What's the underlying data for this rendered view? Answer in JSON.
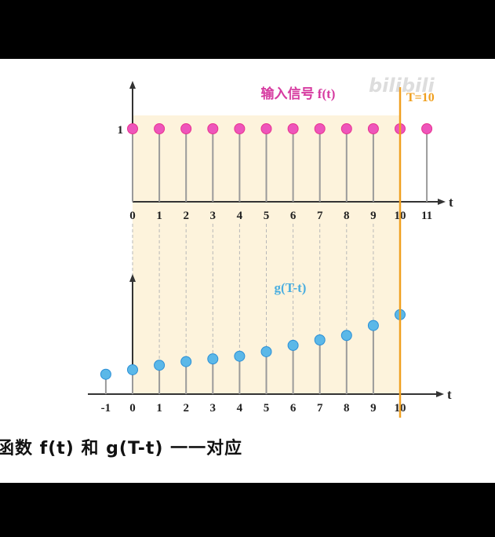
{
  "chart_data": [
    {
      "type": "stem",
      "series": [
        {
          "name": "f(t)",
          "x": [
            0,
            1,
            2,
            3,
            4,
            5,
            6,
            7,
            8,
            9,
            10,
            11
          ],
          "values": [
            1,
            1,
            1,
            1,
            1,
            1,
            1,
            1,
            1,
            1,
            1,
            1
          ]
        }
      ],
      "title": "输入信号 f(t)",
      "xlabel": "t",
      "ylabel": "",
      "xticks": [
        "0",
        "1",
        "2",
        "3",
        "4",
        "5",
        "6",
        "7",
        "8",
        "9",
        "10",
        "11"
      ],
      "yticks": [
        "1"
      ],
      "ylim": [
        0,
        1.35
      ],
      "marker_color": "#ee55bb",
      "marker_color_edge": "#e8338f"
    },
    {
      "type": "stem",
      "series": [
        {
          "name": "g(T-t)",
          "x": [
            -1,
            0,
            1,
            2,
            3,
            4,
            5,
            6,
            7,
            8,
            9,
            10
          ],
          "values": [
            0.22,
            0.27,
            0.32,
            0.36,
            0.39,
            0.42,
            0.47,
            0.54,
            0.6,
            0.65,
            0.76,
            0.88
          ]
        }
      ],
      "title": "g(T-t)",
      "xlabel": "t",
      "ylabel": "",
      "xticks": [
        "-1",
        "0",
        "1",
        "2",
        "3",
        "4",
        "5",
        "6",
        "7",
        "8",
        "9",
        "10"
      ],
      "ylim": [
        0,
        1.35
      ],
      "marker_color": "#5bb8e8",
      "marker_color_edge": "#2b8fd6"
    }
  ],
  "annotation": {
    "marker": "T=10",
    "at": 10,
    "color": "#f0a020"
  },
  "shade_color": "#fdf3dc",
  "subtitle": "函数 f(t) 和 g(T-t) 一一对应",
  "watermark": "bilibili"
}
